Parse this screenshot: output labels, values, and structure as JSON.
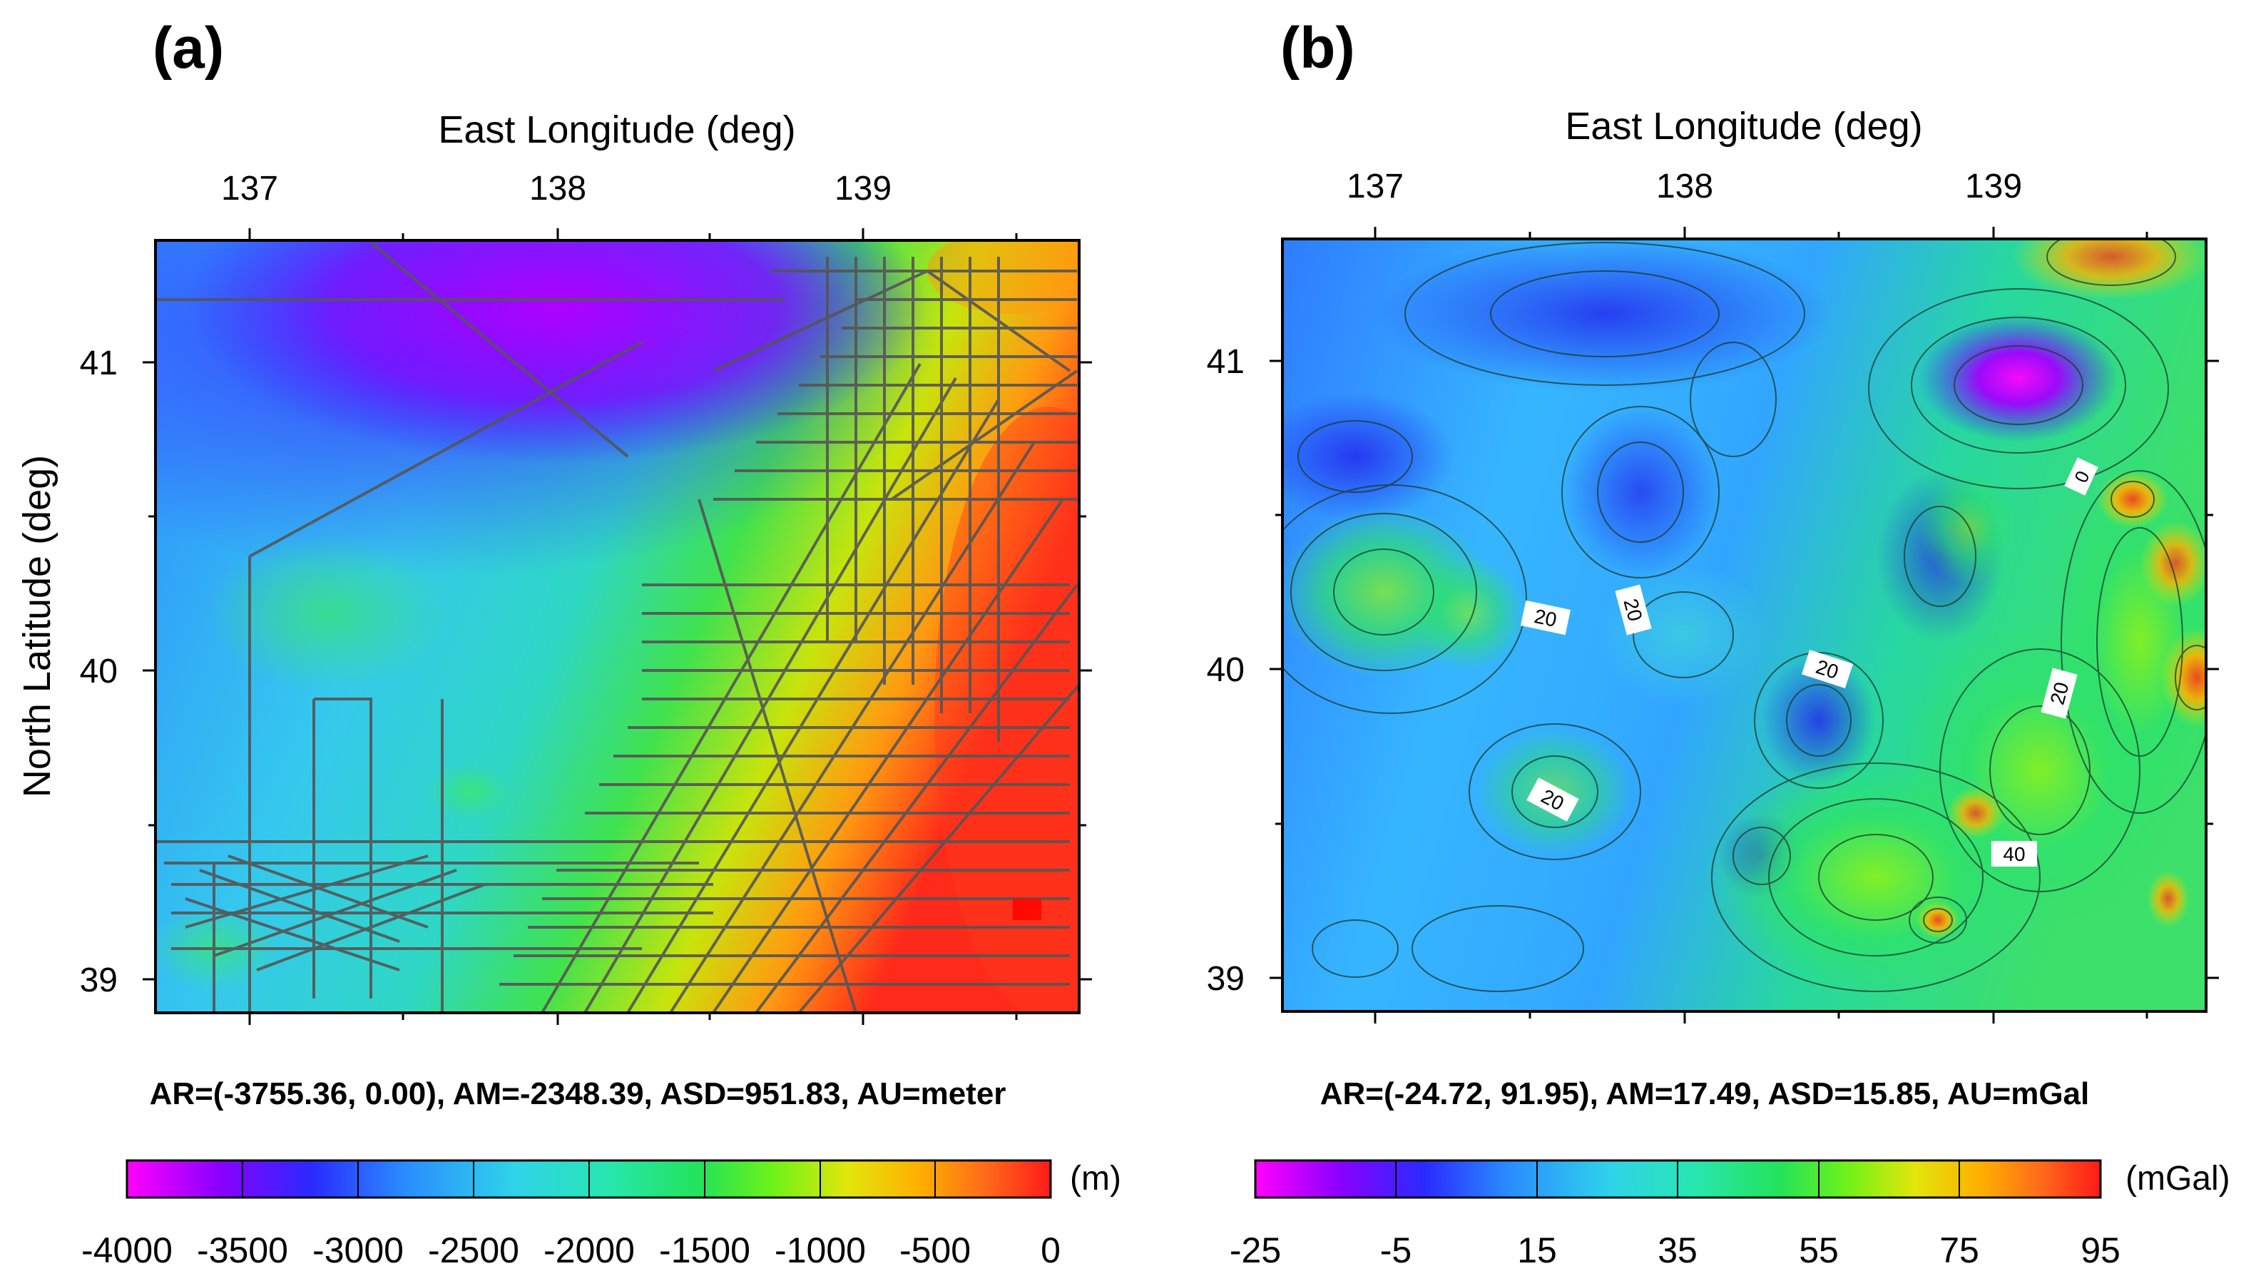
{
  "panels": [
    {
      "id": "a",
      "label": "(a)",
      "x_axis_title": "East Longitude (deg)",
      "y_axis_title": "North Latitude (deg)",
      "x_ticks": [
        "137",
        "138",
        "139"
      ],
      "y_ticks": [
        "41",
        "40",
        "39"
      ],
      "stats": "AR=(-3755.36, 0.00), AM=-2348.39, ASD=951.83, AU=meter",
      "colorbar_unit": "(m)",
      "colorbar_ticks": [
        "-4000",
        "-3500",
        "-3000",
        "-2500",
        "-2000",
        "-1500",
        "-1000",
        "-500",
        "0"
      ]
    },
    {
      "id": "b",
      "label": "(b)",
      "x_axis_title": "East Longitude (deg)",
      "x_ticks": [
        "137",
        "138",
        "139"
      ],
      "y_ticks": [
        "41",
        "40",
        "39"
      ],
      "stats": "AR=(-24.72, 91.95), AM=17.49, ASD=15.85, AU=mGal",
      "colorbar_unit": "(mGal)",
      "colorbar_ticks": [
        "-25",
        "-5",
        "15",
        "35",
        "55",
        "75",
        "95"
      ],
      "contour_labels": [
        "0",
        "20",
        "20",
        "20",
        "20",
        "20",
        "40"
      ]
    }
  ],
  "colors": {
    "scale": [
      "#ff00ff",
      "#6a00ff",
      "#1e3cff",
      "#2f8cff",
      "#2fd0e8",
      "#27e6b0",
      "#22e36a",
      "#5bf21a",
      "#d9e60c",
      "#ffb300",
      "#ff6a1a",
      "#ff1a1a"
    ],
    "track_lines": "#555555",
    "contour_lines": "#1a3a2a"
  }
}
